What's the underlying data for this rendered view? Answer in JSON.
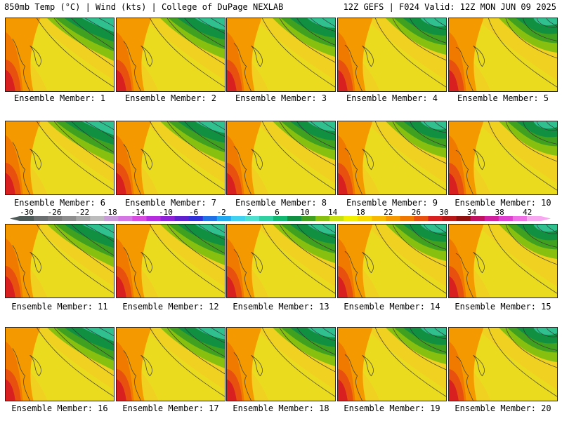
{
  "header": {
    "left": "850mb Temp (°C) | Wind (kts) | College of DuPage NEXLAB",
    "right": "12Z GEFS | F024 Valid: 12Z MON JUN 09 2025"
  },
  "colorbar": {
    "ticks": [
      "-30",
      "-26",
      "-22",
      "-18",
      "-14",
      "-10",
      "-6",
      "-2",
      "2",
      "6",
      "10",
      "14",
      "18",
      "22",
      "26",
      "30",
      "34",
      "38",
      "42"
    ],
    "colors": [
      "#4e5a58",
      "#6b6f6f",
      "#7c7c7c",
      "#8e8e8e",
      "#a6a6a6",
      "#bcbcbc",
      "#c89ad8",
      "#d476e4",
      "#d84ce0",
      "#b82ce0",
      "#9020d8",
      "#6020d0",
      "#3030d8",
      "#2070e8",
      "#20a8f0",
      "#40d0f0",
      "#50e0d0",
      "#30d0a0",
      "#10b870",
      "#109040",
      "#40a020",
      "#88c010",
      "#c8e010",
      "#f0f000",
      "#f8d800",
      "#f8b800",
      "#f89800",
      "#f07800",
      "#e85010",
      "#d82020",
      "#b81818",
      "#901010",
      "#c01060",
      "#d020a0",
      "#e040d0",
      "#f070e8",
      "#f8a8f0"
    ]
  },
  "members": [
    {
      "label": "Ensemble Member: 1"
    },
    {
      "label": "Ensemble Member: 2"
    },
    {
      "label": "Ensemble Member: 3"
    },
    {
      "label": "Ensemble Member: 4"
    },
    {
      "label": "Ensemble Member: 5"
    },
    {
      "label": "Ensemble Member: 6"
    },
    {
      "label": "Ensemble Member: 7"
    },
    {
      "label": "Ensemble Member: 8"
    },
    {
      "label": "Ensemble Member: 9"
    },
    {
      "label": "Ensemble Member: 10"
    },
    {
      "label": "Ensemble Member: 11"
    },
    {
      "label": "Ensemble Member: 12"
    },
    {
      "label": "Ensemble Member: 13"
    },
    {
      "label": "Ensemble Member: 14"
    },
    {
      "label": "Ensemble Member: 15"
    },
    {
      "label": "Ensemble Member: 16"
    },
    {
      "label": "Ensemble Member: 17"
    },
    {
      "label": "Ensemble Member: 18"
    },
    {
      "label": "Ensemble Member: 19"
    },
    {
      "label": "Ensemble Member: 20"
    }
  ]
}
